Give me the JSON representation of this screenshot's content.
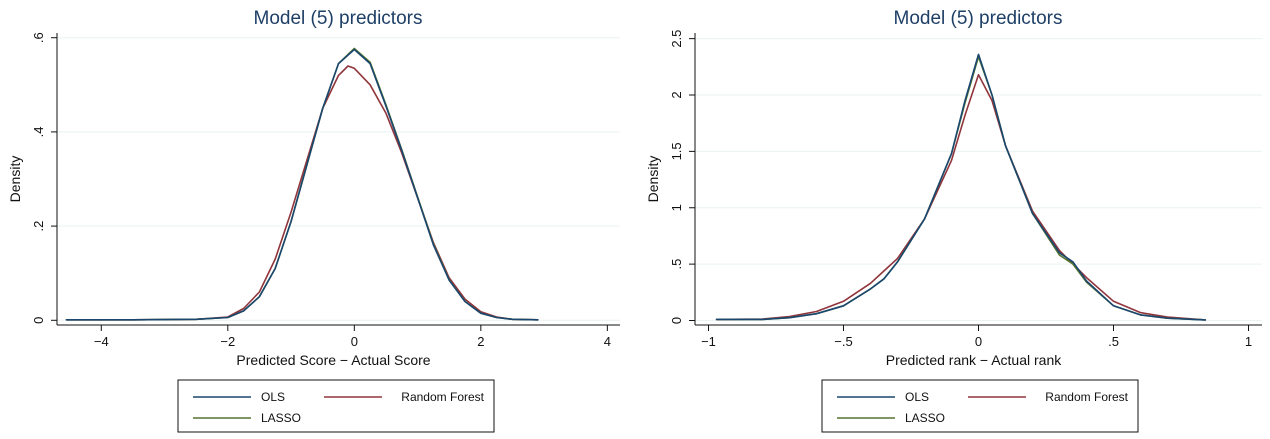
{
  "colors": {
    "OLS": "#1a476f",
    "Random Forest": "#90353b",
    "LASSO": "#55752f",
    "title": "#1e3f66",
    "grid": "#eaf2f3"
  },
  "chart_data": [
    {
      "type": "line",
      "title": "Model (5) predictors",
      "xlabel": "Predicted Score − Actual Score",
      "ylabel": "Density",
      "xlim": [
        -4.7,
        4.2
      ],
      "ylim": [
        -0.01,
        0.61
      ],
      "xticks": [
        -4,
        -2,
        0,
        2,
        4
      ],
      "xtick_labels": [
        "−4",
        "−2",
        "0",
        "2",
        "4"
      ],
      "yticks": [
        0,
        0.2,
        0.4,
        0.6
      ],
      "ytick_labels": [
        "0",
        ".2",
        ".4",
        ".6"
      ],
      "grid": true,
      "legend": {
        "position": "bottom",
        "entries": [
          "OLS",
          "Random Forest",
          "LASSO"
        ]
      },
      "series": [
        {
          "name": "OLS",
          "x": [
            -4.55,
            -3.5,
            -2.5,
            -2.0,
            -1.75,
            -1.5,
            -1.25,
            -1.0,
            -0.75,
            -0.5,
            -0.25,
            0.0,
            0.25,
            0.5,
            0.75,
            1.0,
            1.25,
            1.5,
            1.75,
            2.0,
            2.25,
            2.5,
            2.9
          ],
          "y": [
            0.001,
            0.001,
            0.002,
            0.006,
            0.02,
            0.05,
            0.11,
            0.21,
            0.33,
            0.45,
            0.545,
            0.575,
            0.545,
            0.455,
            0.36,
            0.26,
            0.16,
            0.085,
            0.04,
            0.015,
            0.006,
            0.002,
            0.001
          ]
        },
        {
          "name": "Random Forest",
          "x": [
            -4.55,
            -3.5,
            -2.5,
            -2.0,
            -1.75,
            -1.5,
            -1.25,
            -1.0,
            -0.75,
            -0.5,
            -0.25,
            -0.1,
            0.0,
            0.25,
            0.5,
            0.75,
            1.0,
            1.25,
            1.5,
            1.75,
            2.0,
            2.25,
            2.5,
            2.9
          ],
          "y": [
            0.001,
            0.001,
            0.002,
            0.007,
            0.025,
            0.06,
            0.13,
            0.23,
            0.34,
            0.45,
            0.52,
            0.54,
            0.535,
            0.5,
            0.44,
            0.355,
            0.26,
            0.165,
            0.09,
            0.045,
            0.018,
            0.007,
            0.002,
            0.001
          ]
        },
        {
          "name": "LASSO",
          "x": [
            -4.55,
            -3.5,
            -2.5,
            -2.0,
            -1.75,
            -1.5,
            -1.25,
            -1.0,
            -0.75,
            -0.5,
            -0.25,
            0.0,
            0.25,
            0.5,
            0.75,
            1.0,
            1.25,
            1.5,
            1.75,
            2.0,
            2.25,
            2.5,
            2.9
          ],
          "y": [
            0.001,
            0.001,
            0.002,
            0.006,
            0.02,
            0.05,
            0.11,
            0.21,
            0.33,
            0.45,
            0.545,
            0.577,
            0.548,
            0.458,
            0.362,
            0.262,
            0.162,
            0.086,
            0.04,
            0.015,
            0.006,
            0.002,
            0.001
          ]
        }
      ]
    },
    {
      "type": "line",
      "title": "Model (5) predictors",
      "xlabel": "Predicted rank − Actual rank",
      "ylabel": "Density",
      "xlim": [
        -1.05,
        1.05
      ],
      "ylim": [
        -0.04,
        2.55
      ],
      "xticks": [
        -1,
        -0.5,
        0,
        0.5,
        1
      ],
      "xtick_labels": [
        "−1",
        "−.5",
        "0",
        ".5",
        "1"
      ],
      "yticks": [
        0,
        0.5,
        1,
        1.5,
        2,
        2.5
      ],
      "ytick_labels": [
        "0",
        ".5",
        "1",
        "1.5",
        "2",
        "2.5"
      ],
      "grid": true,
      "legend": {
        "position": "bottom",
        "entries": [
          "OLS",
          "Random Forest",
          "LASSO"
        ]
      },
      "series": [
        {
          "name": "OLS",
          "x": [
            -0.97,
            -0.8,
            -0.7,
            -0.6,
            -0.5,
            -0.4,
            -0.35,
            -0.3,
            -0.2,
            -0.1,
            -0.05,
            0.0,
            0.05,
            0.1,
            0.2,
            0.3,
            0.35,
            0.4,
            0.5,
            0.6,
            0.7,
            0.84
          ],
          "y": [
            0.01,
            0.01,
            0.025,
            0.06,
            0.13,
            0.28,
            0.37,
            0.52,
            0.9,
            1.48,
            1.95,
            2.36,
            2.0,
            1.55,
            0.95,
            0.6,
            0.52,
            0.35,
            0.13,
            0.05,
            0.02,
            0.005
          ]
        },
        {
          "name": "Random Forest",
          "x": [
            -0.97,
            -0.8,
            -0.7,
            -0.6,
            -0.5,
            -0.4,
            -0.35,
            -0.3,
            -0.2,
            -0.1,
            -0.05,
            0.0,
            0.05,
            0.1,
            0.2,
            0.3,
            0.35,
            0.4,
            0.5,
            0.6,
            0.7,
            0.84
          ],
          "y": [
            0.01,
            0.012,
            0.035,
            0.08,
            0.17,
            0.33,
            0.44,
            0.55,
            0.9,
            1.42,
            1.82,
            2.18,
            1.95,
            1.55,
            0.97,
            0.62,
            0.5,
            0.38,
            0.17,
            0.07,
            0.03,
            0.005
          ]
        },
        {
          "name": "LASSO",
          "x": [
            -0.97,
            -0.8,
            -0.7,
            -0.6,
            -0.5,
            -0.4,
            -0.35,
            -0.3,
            -0.2,
            -0.1,
            -0.05,
            0.0,
            0.05,
            0.1,
            0.2,
            0.3,
            0.35,
            0.4,
            0.5,
            0.6,
            0.7,
            0.84
          ],
          "y": [
            0.01,
            0.01,
            0.025,
            0.06,
            0.13,
            0.28,
            0.37,
            0.52,
            0.9,
            1.48,
            1.93,
            2.34,
            2.0,
            1.55,
            0.95,
            0.58,
            0.5,
            0.34,
            0.13,
            0.05,
            0.02,
            0.005
          ]
        }
      ]
    }
  ]
}
